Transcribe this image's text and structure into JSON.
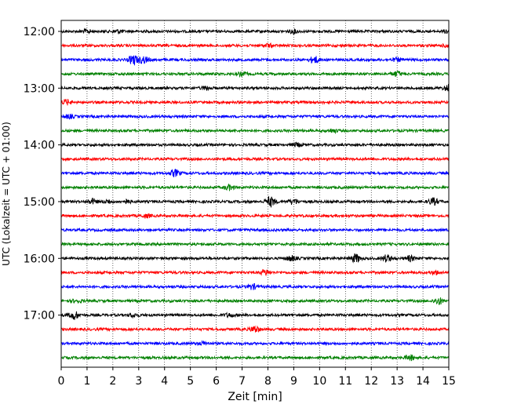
{
  "chart_data": {
    "type": "line",
    "title": "",
    "xlabel": "Zeit  [min]",
    "ylabel": "UTC (Lokalzeit = UTC + 01:00)",
    "xlim": [
      0,
      15
    ],
    "x_ticks": [
      "0",
      "1",
      "2",
      "3",
      "4",
      "5",
      "6",
      "7",
      "8",
      "9",
      "10",
      "11",
      "12",
      "13",
      "14",
      "15"
    ],
    "y_tick_labels": [
      "12:00",
      "13:00",
      "14:00",
      "15:00",
      "16:00",
      "17:00"
    ],
    "grid": "vertical dotted lines at each minute",
    "trace_interval_minutes": 15,
    "colors": [
      "#000000",
      "#ff0000",
      "#0000ff",
      "#008000"
    ],
    "traces": [
      {
        "start": "12:00",
        "color": "#000000",
        "events": [
          [
            1.0,
            2
          ],
          [
            2.2,
            2
          ],
          [
            9.0,
            2
          ],
          [
            15.0,
            3
          ]
        ]
      },
      {
        "start": "12:15",
        "color": "#ff0000",
        "events": [
          [
            8.0,
            2
          ],
          [
            15.0,
            3
          ]
        ]
      },
      {
        "start": "12:30",
        "color": "#0000ff",
        "events": [
          [
            2.8,
            6
          ],
          [
            3.2,
            4
          ],
          [
            9.8,
            4
          ],
          [
            13.0,
            2
          ]
        ]
      },
      {
        "start": "12:45",
        "color": "#008000",
        "events": [
          [
            7.0,
            2
          ],
          [
            13.0,
            3
          ]
        ]
      },
      {
        "start": "13:00",
        "color": "#000000",
        "events": [
          [
            5.6,
            2
          ],
          [
            15.0,
            4
          ]
        ]
      },
      {
        "start": "13:15",
        "color": "#ff0000",
        "events": [
          [
            0.2,
            3
          ]
        ]
      },
      {
        "start": "13:30",
        "color": "#0000ff",
        "events": [
          [
            0.3,
            2
          ]
        ]
      },
      {
        "start": "13:45",
        "color": "#008000",
        "events": [
          [
            10.5,
            2
          ]
        ]
      },
      {
        "start": "14:00",
        "color": "#000000",
        "events": [
          [
            9.1,
            2
          ]
        ]
      },
      {
        "start": "14:15",
        "color": "#ff0000",
        "events": []
      },
      {
        "start": "14:30",
        "color": "#0000ff",
        "events": [
          [
            4.4,
            4
          ]
        ]
      },
      {
        "start": "14:45",
        "color": "#008000",
        "events": [
          [
            6.5,
            3
          ]
        ]
      },
      {
        "start": "15:00",
        "color": "#000000",
        "events": [
          [
            1.2,
            3
          ],
          [
            1.8,
            2
          ],
          [
            2.5,
            2
          ],
          [
            8.1,
            6
          ],
          [
            9.0,
            3
          ],
          [
            14.4,
            4
          ]
        ]
      },
      {
        "start": "15:15",
        "color": "#ff0000",
        "events": [
          [
            3.3,
            2
          ]
        ]
      },
      {
        "start": "15:30",
        "color": "#0000ff",
        "events": []
      },
      {
        "start": "15:45",
        "color": "#008000",
        "events": []
      },
      {
        "start": "16:00",
        "color": "#000000",
        "events": [
          [
            8.9,
            3
          ],
          [
            11.4,
            5
          ],
          [
            12.6,
            4
          ],
          [
            13.5,
            3
          ]
        ]
      },
      {
        "start": "16:15",
        "color": "#ff0000",
        "events": [
          [
            7.9,
            3
          ],
          [
            14.5,
            2
          ]
        ]
      },
      {
        "start": "16:30",
        "color": "#0000ff",
        "events": [
          [
            7.4,
            3
          ]
        ]
      },
      {
        "start": "16:45",
        "color": "#008000",
        "events": [
          [
            0.6,
            2
          ],
          [
            14.6,
            4
          ]
        ]
      },
      {
        "start": "17:00",
        "color": "#000000",
        "events": [
          [
            0.5,
            5
          ],
          [
            2.8,
            2
          ],
          [
            6.5,
            2
          ]
        ]
      },
      {
        "start": "17:15",
        "color": "#ff0000",
        "events": [
          [
            7.5,
            4
          ]
        ]
      },
      {
        "start": "17:30",
        "color": "#0000ff",
        "events": [
          [
            5.5,
            2
          ]
        ]
      },
      {
        "start": "17:45",
        "color": "#008000",
        "events": [
          [
            13.5,
            3
          ]
        ]
      }
    ]
  }
}
